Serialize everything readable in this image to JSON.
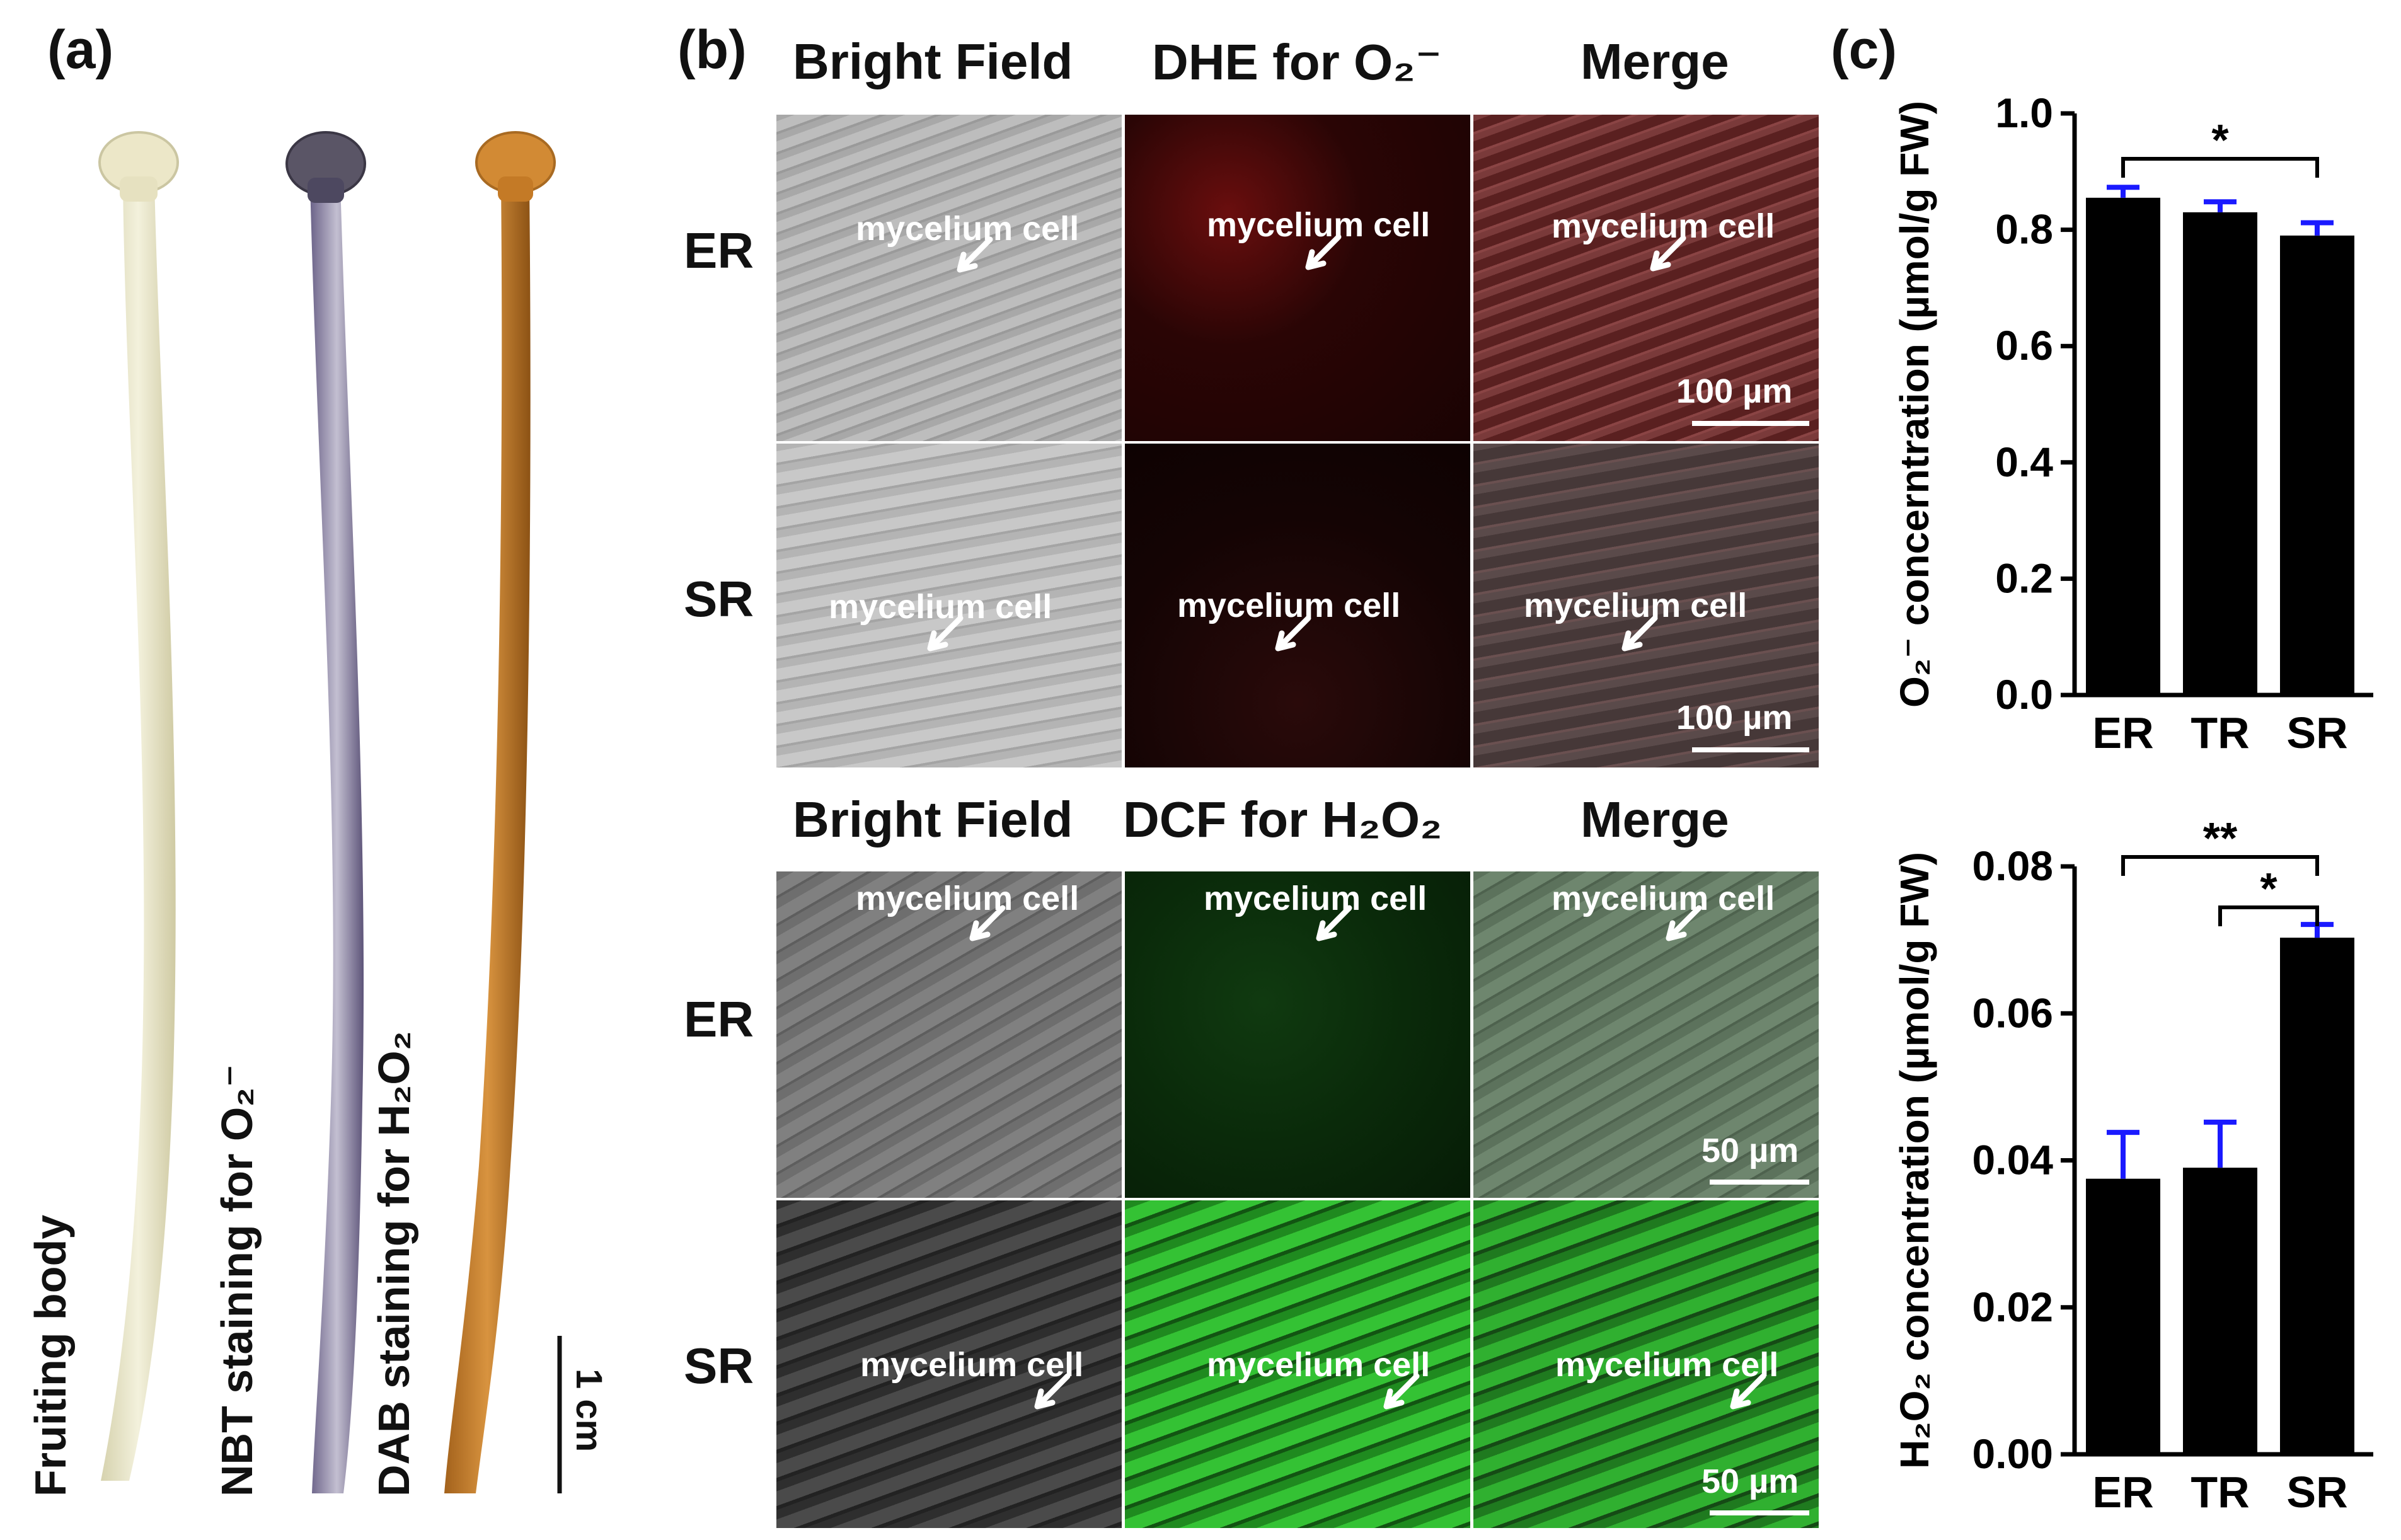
{
  "panel_a": {
    "letter": "(a)",
    "captions": [
      "Fruiting body",
      "NBT staining for O₂⁻",
      "DAB staining for H₂O₂"
    ],
    "scale": "1 cm"
  },
  "panel_b": {
    "letter": "(b)",
    "headers_top": [
      "Bright Field",
      "DHE for O₂⁻",
      "Merge"
    ],
    "headers_bottom": [
      "Bright Field",
      "DCF for H₂O₂",
      "Merge"
    ],
    "rows_top": [
      "ER",
      "SR"
    ],
    "rows_bottom": [
      "ER",
      "SR"
    ],
    "cell_label": "mycelium cell",
    "scale_top": "100 µm",
    "scale_bottom": "50 µm"
  },
  "panel_c": {
    "letter": "(c)"
  },
  "chart_data": [
    {
      "type": "bar",
      "title": "",
      "xlabel": "",
      "ylabel": "O₂⁻ concerntration (µmol/g FW)",
      "categories": [
        "ER",
        "TR",
        "SR"
      ],
      "values": [
        0.855,
        0.83,
        0.79
      ],
      "errors": [
        0.018,
        0.018,
        0.022
      ],
      "ylim": [
        0,
        1.0
      ],
      "ticks": [
        "0.0",
        "0.2",
        "0.4",
        "0.6",
        "0.8",
        "1.0"
      ],
      "tick_values": [
        0,
        0.2,
        0.4,
        0.6,
        0.8,
        1.0
      ],
      "significance": [
        {
          "from": "ER",
          "to": "SR",
          "label": "*"
        }
      ],
      "bar_color": "#000000",
      "error_color": "#1a1aff"
    },
    {
      "type": "bar",
      "title": "",
      "xlabel": "",
      "ylabel": "H₂O₂ concentration (µmol/g FW)",
      "categories": [
        "ER",
        "TR",
        "SR"
      ],
      "values": [
        0.0375,
        0.039,
        0.0703
      ],
      "errors": [
        0.0063,
        0.0062,
        0.0018
      ],
      "ylim": [
        0,
        0.08
      ],
      "ticks": [
        "0.00",
        "0.02",
        "0.04",
        "0.06",
        "0.08"
      ],
      "tick_values": [
        0,
        0.02,
        0.04,
        0.06,
        0.08
      ],
      "significance": [
        {
          "from": "ER",
          "to": "SR",
          "label": "**"
        },
        {
          "from": "TR",
          "to": "SR",
          "label": "*"
        }
      ],
      "bar_color": "#000000",
      "error_color": "#1a1aff"
    }
  ]
}
